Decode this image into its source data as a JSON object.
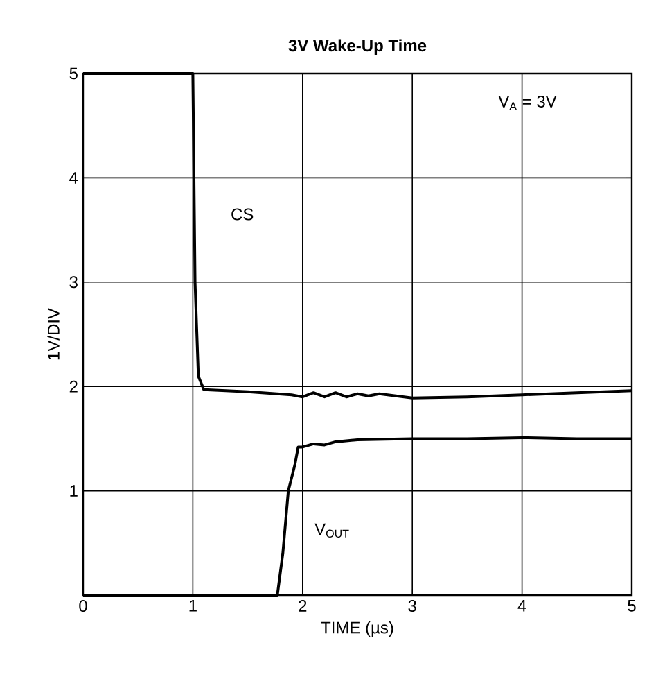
{
  "chart_data": {
    "type": "line",
    "title": "3V Wake-Up Time",
    "xlabel": "TIME (µs)",
    "ylabel": "1V/DIV",
    "xlim": [
      0,
      5
    ],
    "ylim": [
      0,
      5
    ],
    "xticks": [
      0,
      1,
      2,
      3,
      4,
      5
    ],
    "yticks": [
      {
        "value": 0,
        "label": null
      },
      1,
      2,
      3,
      4,
      5
    ],
    "grid": true,
    "line_style": "solid",
    "annotations": [
      "V$_{A}$ = 3V"
    ],
    "series": [
      {
        "name": "CS",
        "color": "#000000",
        "x": [
          0,
          1.0,
          1.02,
          1.05,
          1.1,
          1.5,
          1.9,
          2.0,
          2.1,
          2.2,
          2.3,
          2.4,
          2.5,
          2.6,
          2.7,
          3.0,
          3.5,
          4.0,
          4.5,
          5.0
        ],
        "values": [
          5,
          5,
          3.0,
          2.1,
          1.97,
          1.95,
          1.92,
          1.9,
          1.94,
          1.9,
          1.94,
          1.9,
          1.93,
          1.91,
          1.93,
          1.89,
          1.9,
          1.92,
          1.94,
          1.96
        ]
      },
      {
        "name": "V$_{OUT}$",
        "color": "#000000",
        "x": [
          0,
          1.0,
          1.77,
          1.82,
          1.87,
          1.93,
          1.96,
          2.0,
          2.1,
          2.2,
          2.3,
          2.5,
          3.0,
          3.5,
          4.0,
          4.5,
          5.0
        ],
        "values": [
          0,
          0,
          0,
          0.4,
          1.0,
          1.25,
          1.42,
          1.42,
          1.45,
          1.44,
          1.47,
          1.49,
          1.5,
          1.5,
          1.51,
          1.5,
          1.5
        ]
      }
    ]
  }
}
